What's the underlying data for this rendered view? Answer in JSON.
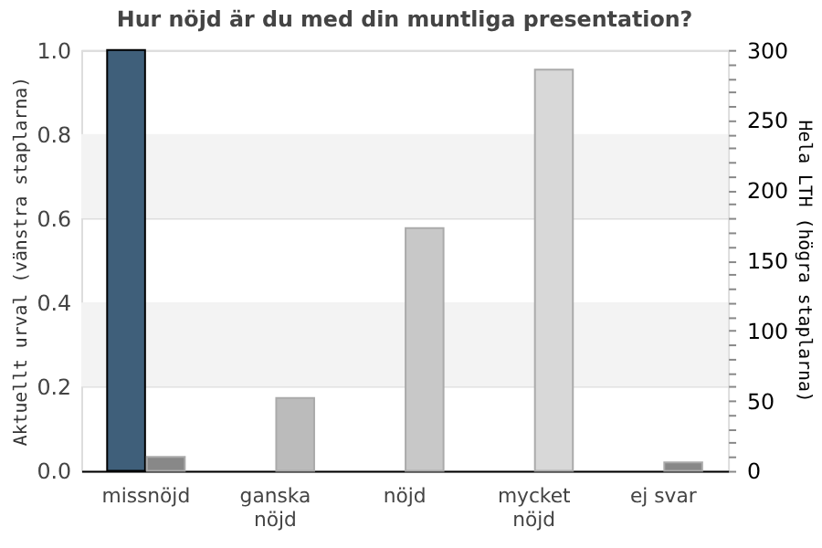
{
  "chart_data": {
    "type": "bar",
    "title": "Hur nöjd är du med din muntliga presentation?",
    "categories": [
      "missnöjd",
      "ganska nöjd",
      "nöjd",
      "mycket nöjd",
      "ej svar"
    ],
    "ylabel": "Aktuellt urval (vänstra staplarna)",
    "y2label": "Hela LTH (högra staplarna)",
    "series": [
      {
        "color": "#3f5f7a",
        "values": [
          1.0,
          null,
          null,
          null,
          null
        ]
      },
      {
        "axis": "y2",
        "colors": [
          "#888888",
          "#bbbbbb",
          "#c8c8c8",
          "#d8d8d8",
          "#888888"
        ],
        "values": [
          10,
          52,
          173,
          286,
          6
        ]
      }
    ],
    "ylim": [
      0,
      1.0
    ],
    "yticks": [
      {
        "value": 0,
        "label": "0.0"
      },
      {
        "value": 0.2,
        "label": "0.2"
      },
      {
        "value": 0.4,
        "label": "0.4"
      },
      {
        "value": 0.6,
        "label": "0.6"
      },
      {
        "value": 0.8,
        "label": "0.8"
      },
      {
        "value": 1.0,
        "label": "1.0"
      }
    ],
    "y2lim": [
      0,
      300
    ],
    "y2ticks": [
      0,
      {
        "value": 10,
        "label": null
      },
      {
        "value": 20,
        "label": null
      },
      {
        "value": 30,
        "label": null
      },
      {
        "value": 40,
        "label": null
      },
      50,
      {
        "value": 60,
        "label": null
      },
      {
        "value": 70,
        "label": null
      },
      {
        "value": 80,
        "label": null
      },
      {
        "value": 90,
        "label": null
      },
      100,
      {
        "value": 110,
        "label": null
      },
      {
        "value": 120,
        "label": null
      },
      {
        "value": 130,
        "label": null
      },
      {
        "value": 140,
        "label": null
      },
      150,
      {
        "value": 160,
        "label": null
      },
      {
        "value": 170,
        "label": null
      },
      {
        "value": 180,
        "label": null
      },
      {
        "value": 190,
        "label": null
      },
      200,
      {
        "value": 210,
        "label": null
      },
      {
        "value": 220,
        "label": null
      },
      {
        "value": 230,
        "label": null
      },
      {
        "value": 240,
        "label": null
      },
      250,
      {
        "value": 260,
        "label": null
      },
      {
        "value": 270,
        "label": null
      },
      {
        "value": 280,
        "label": null
      },
      {
        "value": 290,
        "label": null
      },
      300
    ],
    "bands": [
      {
        "axis": "y",
        "from": 0.2,
        "to": 0.4,
        "color": "#f3f3f3"
      },
      {
        "axis": "y",
        "from": 0.6,
        "to": 0.8,
        "color": "#f3f3f3"
      }
    ],
    "grid": "y"
  }
}
